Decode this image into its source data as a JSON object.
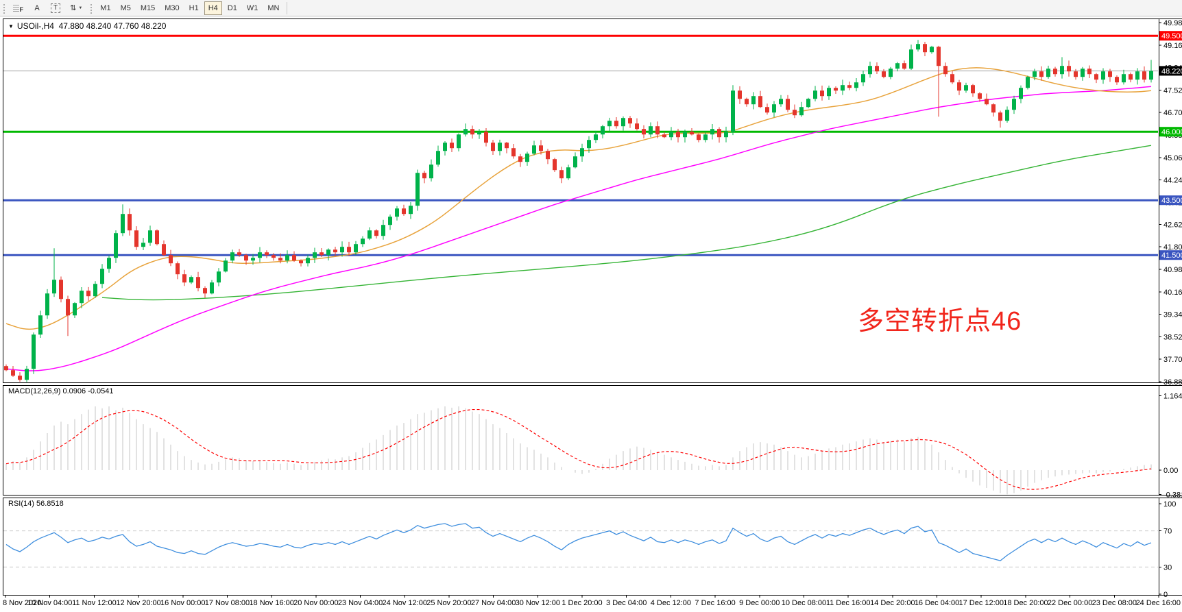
{
  "toolbar": {
    "tools": [
      {
        "name": "chart-shift-icon",
        "glyph": "F"
      },
      {
        "name": "text-tool-icon",
        "glyph": "A"
      },
      {
        "name": "text-label-tool-icon",
        "glyph": "T"
      },
      {
        "name": "arrows-tool-icon",
        "glyph": "⇅",
        "caret": "▼"
      }
    ],
    "timeframes": [
      {
        "label": "M1",
        "active": false
      },
      {
        "label": "M5",
        "active": false
      },
      {
        "label": "M15",
        "active": false
      },
      {
        "label": "M30",
        "active": false
      },
      {
        "label": "H1",
        "active": false
      },
      {
        "label": "H4",
        "active": true
      },
      {
        "label": "D1",
        "active": false
      },
      {
        "label": "W1",
        "active": false
      },
      {
        "label": "MN",
        "active": false
      }
    ]
  },
  "chart": {
    "title": {
      "dropdown": "▼",
      "symbol": "USOil-,H4",
      "ohlc": "47.880 48.240 47.760 48.220"
    }
  },
  "panels": {
    "macd_label": "MACD(12,26,9) 0.0906 -0.0541",
    "rsi_label": "RSI(14) 56.8518"
  },
  "annotation": {
    "text": "多空转折点46",
    "color": "#f1251b"
  },
  "price_axis": {
    "tick_labels": [
      "49.980",
      "49.160",
      "48.340",
      "47.520",
      "46.700",
      "45.880",
      "45.060",
      "44.240",
      "43.420",
      "42.620",
      "41.800",
      "40.980",
      "40.160",
      "39.340",
      "38.520",
      "37.700",
      "36.880"
    ],
    "tick_prices": [
      49.98,
      49.16,
      48.34,
      47.52,
      46.7,
      45.88,
      45.06,
      44.24,
      43.42,
      42.62,
      41.8,
      40.98,
      40.16,
      39.34,
      38.52,
      37.7,
      36.88
    ],
    "hlines": [
      {
        "price": 49.5,
        "label": "49.500",
        "color": "#fe0000"
      },
      {
        "price": 46.0,
        "label": "46.000",
        "color": "#00b900"
      },
      {
        "price": 43.5,
        "label": "43.500",
        "color": "#3a55c0"
      },
      {
        "price": 41.5,
        "label": "41.500",
        "color": "#3a55c0"
      }
    ],
    "current": {
      "price": 48.22,
      "label": "48.220",
      "color": "#000000"
    }
  },
  "macd_axis": [
    {
      "label": "1.1646",
      "value": 1.1646
    },
    {
      "label": "0.00",
      "value": 0.0
    },
    {
      "label": "-0.3812",
      "value": -0.3812
    }
  ],
  "rsi_axis": [
    {
      "label": "100",
      "value": 100,
      "dashed": false
    },
    {
      "label": "70",
      "value": 70,
      "dashed": true
    },
    {
      "label": "30",
      "value": 30,
      "dashed": true
    },
    {
      "label": "0",
      "value": 0,
      "dashed": false
    }
  ],
  "date_axis": {
    "labels": [
      "8 Nov 2020",
      "10 Nov 04:00",
      "11 Nov 12:00",
      "12 Nov 20:00",
      "16 Nov 00:00",
      "17 Nov 08:00",
      "18 Nov 16:00",
      "20 Nov 00:00",
      "23 Nov 04:00",
      "24 Nov 12:00",
      "25 Nov 20:00",
      "27 Nov 04:00",
      "30 Nov 12:00",
      "1 Dec 20:00",
      "3 Dec 04:00",
      "4 Dec 12:00",
      "7 Dec 16:00",
      "9 Dec 00:00",
      "10 Dec 08:00",
      "11 Dec 16:00",
      "14 Dec 20:00",
      "16 Dec 04:00",
      "17 Dec 12:00",
      "18 Dec 20:00",
      "22 Dec 00:00",
      "23 Dec 08:00",
      "24 Dec 16:00"
    ]
  },
  "colors": {
    "up": "#00b24a",
    "down": "#e4352c",
    "ma_fast": "#e8a33c",
    "ma_mid": "#ff00ff",
    "ma_slow": "#35b435",
    "macd_hist": "#c6c6c6",
    "macd_signal": "#fe0000",
    "rsi": "#3e8ede",
    "level_dashed": "#c8c8c8",
    "current_line": "#9a9a9a"
  },
  "chart_data": [
    {
      "type": "candlestick",
      "symbol": "USOil-",
      "timeframe": "H4",
      "title": "USOil-,H4 47.880 48.240 47.760 48.220",
      "ylim": [
        36.855,
        50.13
      ],
      "tick_step": 0.82,
      "open_first": 37.45,
      "closes": [
        37.3,
        37.1,
        36.95,
        37.35,
        38.6,
        39.3,
        40.1,
        40.6,
        39.9,
        39.3,
        39.75,
        40.2,
        40.0,
        40.45,
        41.0,
        41.4,
        42.3,
        43.0,
        42.4,
        41.8,
        41.95,
        42.4,
        41.9,
        41.5,
        41.2,
        40.8,
        40.5,
        40.7,
        40.3,
        40.1,
        40.5,
        40.9,
        41.3,
        41.6,
        41.5,
        41.3,
        41.4,
        41.6,
        41.5,
        41.4,
        41.3,
        41.5,
        41.3,
        41.2,
        41.4,
        41.6,
        41.5,
        41.7,
        41.6,
        41.8,
        41.6,
        41.9,
        42.1,
        42.4,
        42.2,
        42.6,
        42.9,
        43.2,
        43.0,
        43.3,
        44.5,
        44.3,
        44.8,
        45.3,
        45.6,
        45.4,
        45.9,
        46.1,
        45.9,
        46.0,
        45.6,
        45.3,
        45.6,
        45.4,
        45.1,
        44.9,
        45.2,
        45.5,
        45.3,
        45.0,
        44.6,
        44.3,
        44.7,
        45.1,
        45.4,
        45.7,
        45.9,
        46.2,
        46.4,
        46.2,
        46.5,
        46.3,
        46.1,
        45.9,
        46.2,
        45.9,
        45.8,
        46.0,
        45.8,
        46.0,
        45.9,
        45.7,
        45.9,
        46.1,
        45.8,
        46.0,
        47.5,
        47.2,
        47.0,
        47.3,
        46.9,
        46.7,
        47.0,
        47.2,
        46.8,
        46.6,
        46.9,
        47.2,
        47.5,
        47.3,
        47.6,
        47.5,
        47.7,
        47.6,
        47.8,
        48.1,
        48.4,
        48.2,
        48.0,
        48.3,
        48.5,
        48.3,
        49.0,
        49.2,
        48.9,
        49.1,
        48.4,
        48.1,
        47.8,
        47.5,
        47.7,
        47.4,
        47.2,
        47.0,
        46.7,
        46.4,
        46.8,
        47.2,
        47.6,
        48.0,
        48.2,
        48.0,
        48.3,
        48.1,
        48.4,
        48.2,
        48.0,
        48.3,
        48.1,
        47.9,
        48.2,
        48.0,
        47.8,
        48.1,
        47.9,
        48.2,
        47.9,
        48.22
      ],
      "spikes": {
        "2": {
          "l": 36.88
        },
        "7": {
          "h": 41.75
        },
        "9": {
          "l": 38.55
        },
        "17": {
          "h": 43.35
        },
        "67": {
          "h": 46.3
        },
        "106": {
          "h": 47.7
        },
        "133": {
          "h": 49.35
        },
        "136": {
          "l": 46.55
        },
        "145": {
          "l": 46.15
        },
        "154": {
          "h": 48.72
        },
        "167": {
          "h": 48.62
        }
      },
      "ma_fast_points": [
        [
          0,
          39.0
        ],
        [
          3,
          38.75
        ],
        [
          6,
          38.9
        ],
        [
          9,
          39.3
        ],
        [
          12,
          39.8
        ],
        [
          15,
          40.3
        ],
        [
          18,
          40.9
        ],
        [
          21,
          41.25
        ],
        [
          24,
          41.45
        ],
        [
          27,
          41.45
        ],
        [
          30,
          41.35
        ],
        [
          33,
          41.2
        ],
        [
          36,
          41.2
        ],
        [
          39,
          41.25
        ],
        [
          42,
          41.3
        ],
        [
          45,
          41.35
        ],
        [
          48,
          41.45
        ],
        [
          51,
          41.55
        ],
        [
          54,
          41.75
        ],
        [
          57,
          42.0
        ],
        [
          60,
          42.35
        ],
        [
          63,
          42.8
        ],
        [
          66,
          43.4
        ],
        [
          69,
          44.0
        ],
        [
          72,
          44.55
        ],
        [
          75,
          45.0
        ],
        [
          78,
          45.25
        ],
        [
          81,
          45.35
        ],
        [
          84,
          45.3
        ],
        [
          87,
          45.35
        ],
        [
          90,
          45.5
        ],
        [
          93,
          45.7
        ],
        [
          96,
          45.9
        ],
        [
          99,
          45.95
        ],
        [
          102,
          45.95
        ],
        [
          105,
          45.95
        ],
        [
          108,
          46.2
        ],
        [
          111,
          46.45
        ],
        [
          114,
          46.65
        ],
        [
          117,
          46.8
        ],
        [
          120,
          46.9
        ],
        [
          123,
          47.0
        ],
        [
          126,
          47.15
        ],
        [
          129,
          47.4
        ],
        [
          132,
          47.7
        ],
        [
          135,
          48.0
        ],
        [
          138,
          48.25
        ],
        [
          141,
          48.35
        ],
        [
          144,
          48.3
        ],
        [
          147,
          48.15
        ],
        [
          150,
          47.95
        ],
        [
          153,
          47.75
        ],
        [
          156,
          47.6
        ],
        [
          159,
          47.5
        ],
        [
          162,
          47.45
        ],
        [
          165,
          47.45
        ],
        [
          167,
          47.5
        ]
      ],
      "ma_mid_points": [
        [
          0,
          37.35
        ],
        [
          4,
          37.25
        ],
        [
          8,
          37.4
        ],
        [
          12,
          37.7
        ],
        [
          16,
          38.05
        ],
        [
          20,
          38.5
        ],
        [
          24,
          38.95
        ],
        [
          28,
          39.35
        ],
        [
          32,
          39.7
        ],
        [
          36,
          40.05
        ],
        [
          40,
          40.35
        ],
        [
          44,
          40.6
        ],
        [
          48,
          40.85
        ],
        [
          52,
          41.05
        ],
        [
          56,
          41.3
        ],
        [
          60,
          41.6
        ],
        [
          64,
          41.95
        ],
        [
          68,
          42.3
        ],
        [
          72,
          42.65
        ],
        [
          76,
          43.0
        ],
        [
          80,
          43.35
        ],
        [
          84,
          43.65
        ],
        [
          88,
          43.95
        ],
        [
          92,
          44.25
        ],
        [
          96,
          44.5
        ],
        [
          100,
          44.75
        ],
        [
          104,
          45.0
        ],
        [
          108,
          45.3
        ],
        [
          112,
          45.6
        ],
        [
          116,
          45.85
        ],
        [
          120,
          46.1
        ],
        [
          124,
          46.3
        ],
        [
          128,
          46.5
        ],
        [
          132,
          46.7
        ],
        [
          136,
          46.9
        ],
        [
          140,
          47.05
        ],
        [
          144,
          47.2
        ],
        [
          148,
          47.3
        ],
        [
          152,
          47.4
        ],
        [
          156,
          47.45
        ],
        [
          160,
          47.5
        ],
        [
          164,
          47.58
        ],
        [
          167,
          47.65
        ]
      ],
      "ma_slow_points": [
        [
          14,
          39.95
        ],
        [
          20,
          39.85
        ],
        [
          28,
          39.9
        ],
        [
          40,
          40.1
        ],
        [
          52,
          40.4
        ],
        [
          64,
          40.7
        ],
        [
          76,
          40.95
        ],
        [
          88,
          41.2
        ],
        [
          99,
          41.5
        ],
        [
          110,
          41.9
        ],
        [
          120,
          42.5
        ],
        [
          130,
          43.5
        ],
        [
          138,
          44.05
        ],
        [
          146,
          44.5
        ],
        [
          154,
          44.95
        ],
        [
          161,
          45.25
        ],
        [
          167,
          45.5
        ]
      ]
    },
    {
      "type": "bar",
      "name": "MACD(12,26,9)",
      "main_current": 0.0906,
      "signal_current": -0.0541,
      "ylim": [
        -0.3812,
        1.1646
      ],
      "values": [
        0.1,
        0.14,
        0.12,
        0.2,
        0.32,
        0.45,
        0.58,
        0.7,
        0.76,
        0.72,
        0.8,
        0.88,
        0.95,
        1.0,
        0.97,
        1.0,
        0.94,
        0.98,
        0.9,
        0.8,
        0.72,
        0.66,
        0.6,
        0.5,
        0.4,
        0.3,
        0.22,
        0.16,
        0.12,
        0.09,
        0.1,
        0.13,
        0.17,
        0.2,
        0.19,
        0.16,
        0.14,
        0.15,
        0.13,
        0.11,
        0.1,
        0.12,
        0.1,
        0.08,
        0.1,
        0.13,
        0.15,
        0.18,
        0.17,
        0.2,
        0.22,
        0.28,
        0.35,
        0.43,
        0.48,
        0.55,
        0.63,
        0.7,
        0.74,
        0.8,
        0.88,
        0.9,
        0.94,
        0.97,
        1.0,
        0.98,
        1.0,
        0.97,
        0.92,
        0.88,
        0.8,
        0.72,
        0.66,
        0.58,
        0.5,
        0.42,
        0.36,
        0.32,
        0.26,
        0.2,
        0.12,
        0.05,
        0.0,
        -0.04,
        -0.06,
        -0.04,
        0.02,
        0.1,
        0.18,
        0.24,
        0.3,
        0.34,
        0.37,
        0.35,
        0.32,
        0.28,
        0.24,
        0.2,
        0.16,
        0.13,
        0.1,
        0.07,
        0.06,
        0.08,
        0.06,
        0.08,
        0.2,
        0.3,
        0.36,
        0.42,
        0.44,
        0.42,
        0.4,
        0.36,
        0.3,
        0.24,
        0.2,
        0.22,
        0.26,
        0.3,
        0.34,
        0.36,
        0.4,
        0.42,
        0.45,
        0.48,
        0.5,
        0.48,
        0.44,
        0.46,
        0.48,
        0.45,
        0.5,
        0.52,
        0.46,
        0.4,
        0.28,
        0.16,
        0.05,
        -0.05,
        -0.12,
        -0.18,
        -0.24,
        -0.28,
        -0.32,
        -0.36,
        -0.38,
        -0.36,
        -0.32,
        -0.26,
        -0.2,
        -0.16,
        -0.12,
        -0.1,
        -0.08,
        -0.07,
        -0.06,
        -0.05,
        -0.04,
        -0.05,
        -0.03,
        -0.02,
        0.0,
        0.02,
        0.04,
        0.06,
        0.08,
        0.09
      ]
    },
    {
      "type": "line",
      "name": "RSI(14)",
      "current": 56.8518,
      "ylim": [
        0,
        100
      ],
      "levels": [
        70,
        30
      ],
      "values": [
        55,
        50,
        47,
        52,
        58,
        62,
        65,
        68,
        63,
        57,
        60,
        62,
        58,
        60,
        63,
        61,
        64,
        66,
        58,
        53,
        55,
        58,
        53,
        51,
        49,
        46,
        45,
        48,
        45,
        44,
        48,
        52,
        55,
        57,
        55,
        53,
        54,
        56,
        55,
        53,
        52,
        55,
        52,
        51,
        54,
        56,
        55,
        57,
        55,
        58,
        55,
        58,
        61,
        64,
        61,
        65,
        68,
        71,
        68,
        71,
        76,
        73,
        75,
        77,
        78,
        75,
        77,
        78,
        73,
        74,
        68,
        64,
        67,
        64,
        61,
        58,
        62,
        65,
        62,
        58,
        53,
        49,
        55,
        59,
        62,
        64,
        66,
        68,
        70,
        66,
        69,
        65,
        62,
        59,
        63,
        58,
        57,
        60,
        57,
        60,
        58,
        55,
        58,
        60,
        56,
        59,
        73,
        68,
        64,
        67,
        61,
        58,
        62,
        64,
        58,
        55,
        59,
        63,
        66,
        62,
        66,
        64,
        67,
        65,
        68,
        71,
        73,
        69,
        66,
        69,
        71,
        67,
        73,
        75,
        69,
        71,
        57,
        54,
        50,
        46,
        50,
        45,
        43,
        41,
        39,
        37,
        43,
        48,
        53,
        58,
        61,
        57,
        61,
        58,
        62,
        58,
        55,
        59,
        56,
        52,
        57,
        54,
        51,
        56,
        53,
        58,
        54,
        56.85
      ]
    }
  ]
}
